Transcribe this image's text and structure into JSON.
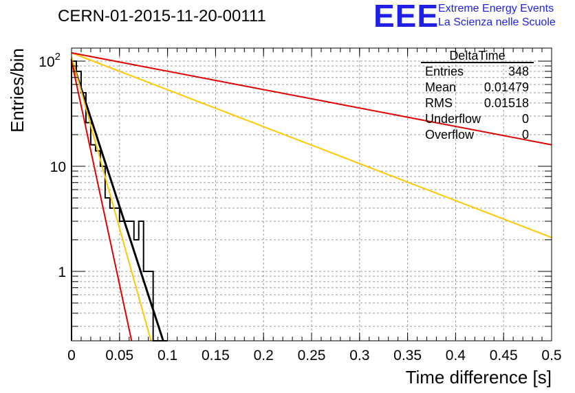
{
  "title": "CERN-01-2015-11-20-00111",
  "logo": {
    "mark": "EEE",
    "line1": "Extreme Energy Events",
    "line2": "La Scienza nelle Scuole",
    "color": "#1f1fe6"
  },
  "stats": {
    "name": "DeltaTime",
    "rows": [
      {
        "label": "Entries",
        "value": "348"
      },
      {
        "label": "Mean",
        "value": "0.01479"
      },
      {
        "label": "RMS",
        "value": "0.01518"
      },
      {
        "label": "Underflow",
        "value": "0"
      },
      {
        "label": "Overflow",
        "value": "0"
      }
    ]
  },
  "chart_data": {
    "type": "line",
    "title": "CERN-01-2015-11-20-00111",
    "xlabel": "Time difference [s]",
    "ylabel": "Entries/bin",
    "xlim": [
      0,
      0.5
    ],
    "ylim": [
      0.22,
      140
    ],
    "ylog": true,
    "grid": true,
    "xticks": [
      0,
      0.05,
      0.1,
      0.15,
      0.2,
      0.25,
      0.3,
      0.35,
      0.4,
      0.45,
      0.5
    ],
    "xtick_labels": [
      "0",
      "0.05",
      "0.1",
      "0.15",
      "0.2",
      "0.25",
      "0.3",
      "0.35",
      "0.4",
      "0.45",
      "0.5"
    ],
    "yticks": [
      1,
      10,
      100
    ],
    "ytick_labels": [
      "1",
      "10",
      "10^2"
    ],
    "histogram": {
      "name": "DeltaTime",
      "color": "#000000",
      "bin_width": 0.005,
      "bin_start": 0,
      "counts": [
        100,
        80,
        50,
        26,
        16,
        14,
        10,
        5,
        4,
        4,
        3,
        3,
        3,
        2,
        3,
        1,
        1,
        0,
        0,
        0
      ]
    },
    "fits": [
      {
        "color": "#000000",
        "points": [
          [
            0,
            105
          ],
          [
            0.0954,
            0.22
          ]
        ]
      },
      {
        "color": "#ffc800",
        "points": [
          [
            0,
            110
          ],
          [
            0.0827,
            0.22
          ]
        ]
      },
      {
        "color": "#e00000",
        "points": [
          [
            0,
            100
          ],
          [
            0.0625,
            0.22
          ]
        ]
      },
      {
        "color": "#ffc800",
        "points": [
          [
            0,
            120
          ],
          [
            0.5,
            2.1
          ]
        ]
      },
      {
        "color": "#e00000",
        "points": [
          [
            0,
            120
          ],
          [
            0.5,
            16
          ]
        ]
      }
    ]
  }
}
